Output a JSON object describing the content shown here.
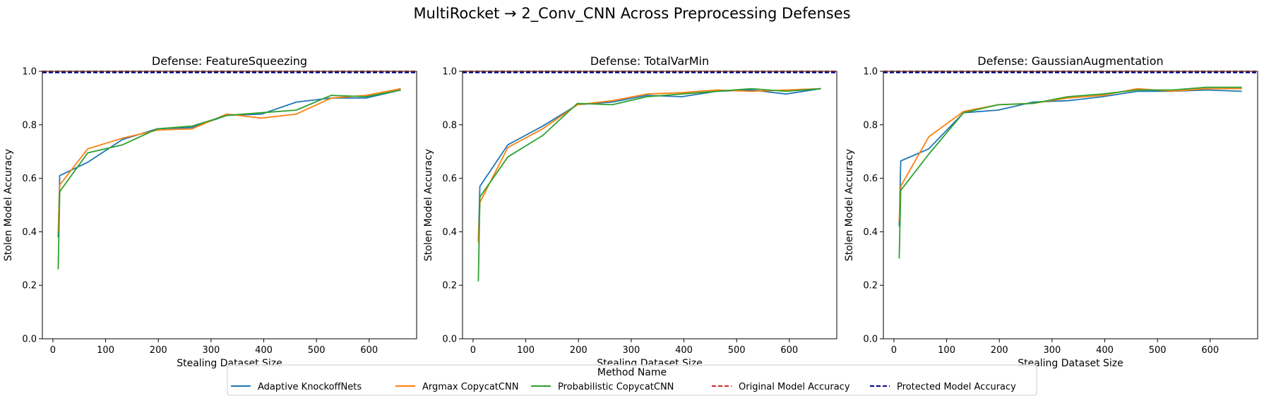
{
  "figure_title": "MultiRocket → 2_Conv_CNN Across Preprocessing Defenses",
  "colors": {
    "adaptive": "#1f77b4",
    "argmax": "#ff7f0e",
    "probabilistic": "#2ca02c",
    "original": "#d62728",
    "protected": "#00008b"
  },
  "legend": {
    "title": "Method Name",
    "entries": [
      {
        "label": "Adaptive KnockoffNets",
        "color": "#1f77b4",
        "style": "solid"
      },
      {
        "label": "Argmax CopycatCNN",
        "color": "#ff7f0e",
        "style": "solid"
      },
      {
        "label": "Probabilistic CopycatCNN",
        "color": "#2ca02c",
        "style": "solid"
      },
      {
        "label": "Original Model Accuracy",
        "color": "#d62728",
        "style": "dashed"
      },
      {
        "label": "Protected Model Accuracy",
        "color": "#00008b",
        "style": "dashed"
      }
    ]
  },
  "chart_data": [
    {
      "type": "line",
      "title": "Defense: FeatureSqueezing",
      "xlabel": "Stealing Dataset Size",
      "ylabel": "Stolen Model Accuracy",
      "xlim": [
        -20,
        690
      ],
      "ylim": [
        0,
        1.0
      ],
      "xticks": [
        0,
        100,
        200,
        300,
        400,
        500,
        600
      ],
      "yticks": [
        0.0,
        0.2,
        0.4,
        0.6,
        0.8,
        1.0
      ],
      "grid": false,
      "x": [
        10,
        13,
        66,
        132,
        198,
        264,
        330,
        396,
        462,
        528,
        594,
        660
      ],
      "series": [
        {
          "name": "Adaptive KnockoffNets",
          "values": [
            0.38,
            0.61,
            0.66,
            0.745,
            0.785,
            0.79,
            0.835,
            0.84,
            0.885,
            0.9,
            0.9,
            0.93
          ]
        },
        {
          "name": "Argmax CopycatCNN",
          "values": [
            0.4,
            0.575,
            0.71,
            0.75,
            0.78,
            0.785,
            0.84,
            0.825,
            0.84,
            0.9,
            0.91,
            0.935
          ]
        },
        {
          "name": "Probabilistic CopycatCNN",
          "values": [
            0.26,
            0.55,
            0.695,
            0.725,
            0.785,
            0.795,
            0.835,
            0.845,
            0.855,
            0.91,
            0.905,
            0.93
          ]
        }
      ],
      "reference_lines": [
        {
          "name": "Original Model Accuracy",
          "value": 1.0
        },
        {
          "name": "Protected Model Accuracy",
          "value": 0.995
        }
      ]
    },
    {
      "type": "line",
      "title": "Defense: TotalVarMin",
      "xlabel": "Stealing Dataset Size",
      "ylabel": "Stolen Model Accuracy",
      "xlim": [
        -20,
        690
      ],
      "ylim": [
        0,
        1.0
      ],
      "xticks": [
        0,
        100,
        200,
        300,
        400,
        500,
        600
      ],
      "yticks": [
        0.0,
        0.2,
        0.4,
        0.6,
        0.8,
        1.0
      ],
      "grid": false,
      "x": [
        10,
        13,
        66,
        132,
        198,
        264,
        330,
        396,
        462,
        528,
        594,
        660
      ],
      "series": [
        {
          "name": "Adaptive KnockoffNets",
          "values": [
            0.37,
            0.57,
            0.725,
            0.795,
            0.875,
            0.885,
            0.91,
            0.905,
            0.925,
            0.93,
            0.915,
            0.935
          ]
        },
        {
          "name": "Argmax CopycatCNN",
          "values": [
            0.36,
            0.51,
            0.715,
            0.785,
            0.875,
            0.89,
            0.915,
            0.92,
            0.93,
            0.925,
            0.93,
            0.935
          ]
        },
        {
          "name": "Probabilistic CopycatCNN",
          "values": [
            0.215,
            0.53,
            0.68,
            0.76,
            0.88,
            0.875,
            0.905,
            0.915,
            0.925,
            0.935,
            0.925,
            0.935
          ]
        }
      ],
      "reference_lines": [
        {
          "name": "Original Model Accuracy",
          "value": 1.0
        },
        {
          "name": "Protected Model Accuracy",
          "value": 0.995
        }
      ]
    },
    {
      "type": "line",
      "title": "Defense: GaussianAugmentation",
      "xlabel": "Stealing Dataset Size",
      "ylabel": "Stolen Model Accuracy",
      "xlim": [
        -20,
        690
      ],
      "ylim": [
        0,
        1.0
      ],
      "xticks": [
        0,
        100,
        200,
        300,
        400,
        500,
        600
      ],
      "yticks": [
        0.0,
        0.2,
        0.4,
        0.6,
        0.8,
        1.0
      ],
      "grid": false,
      "x": [
        10,
        13,
        66,
        132,
        198,
        264,
        330,
        396,
        462,
        528,
        594,
        660
      ],
      "series": [
        {
          "name": "Adaptive KnockoffNets",
          "values": [
            0.42,
            0.665,
            0.71,
            0.845,
            0.855,
            0.885,
            0.89,
            0.905,
            0.925,
            0.925,
            0.93,
            0.925
          ]
        },
        {
          "name": "Argmax CopycatCNN",
          "values": [
            0.44,
            0.57,
            0.755,
            0.85,
            0.875,
            0.88,
            0.9,
            0.91,
            0.935,
            0.925,
            0.935,
            0.935
          ]
        },
        {
          "name": "Probabilistic CopycatCNN",
          "values": [
            0.3,
            0.555,
            0.69,
            0.845,
            0.875,
            0.88,
            0.905,
            0.915,
            0.93,
            0.93,
            0.94,
            0.94
          ]
        }
      ],
      "reference_lines": [
        {
          "name": "Original Model Accuracy",
          "value": 1.0
        },
        {
          "name": "Protected Model Accuracy",
          "value": 0.995
        }
      ]
    }
  ]
}
